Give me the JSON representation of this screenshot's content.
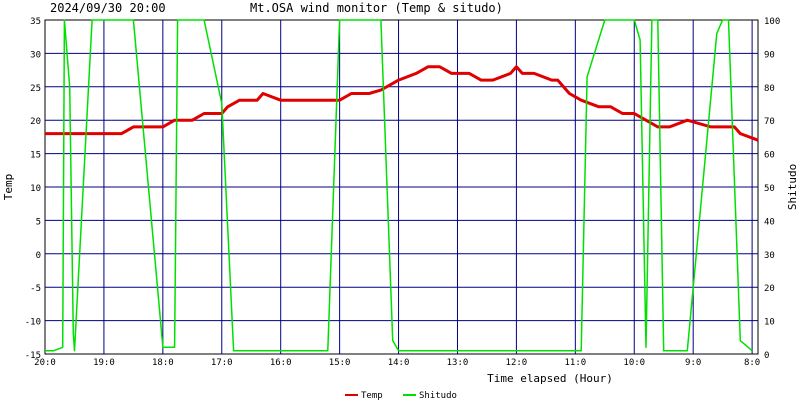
{
  "header": {
    "timestamp": "2024/09/30 20:00",
    "title": "Mt.OSA wind monitor (Temp & situdo)"
  },
  "chart_data": {
    "type": "line",
    "xlabel": "Time elapsed (Hour)",
    "ylabel_left": "Temp",
    "ylabel_right": "Shitudo",
    "x_ticks": [
      "20:0",
      "19:0",
      "18:0",
      "17:0",
      "16:0",
      "15:0",
      "14:0",
      "13:0",
      "12:0",
      "11:0",
      "10:0",
      "9:0",
      "8:0"
    ],
    "left_ticks": [
      "35",
      "30",
      "25",
      "20",
      "15",
      "10",
      "5",
      "0",
      "-5",
      "-10",
      "-15"
    ],
    "right_ticks": [
      "100",
      "90",
      "80",
      "70",
      "60",
      "50",
      "40",
      "30",
      "20",
      "10",
      "0"
    ],
    "ylim_left": [
      -15,
      35
    ],
    "ylim_right": [
      0,
      100
    ],
    "xlim_hours_elapsed": [
      0,
      12.1
    ],
    "grid": true,
    "legend_position": "bottom",
    "series": [
      {
        "name": "Temp",
        "axis": "left",
        "color": "#e00000",
        "x": [
          0,
          0.5,
          1.0,
          1.3,
          1.5,
          2.0,
          2.2,
          2.5,
          2.7,
          3.0,
          3.1,
          3.3,
          3.6,
          3.7,
          4.0,
          5.0,
          5.2,
          5.5,
          5.7,
          6.0,
          6.3,
          6.5,
          6.7,
          6.9,
          7.2,
          7.4,
          7.6,
          7.9,
          8.0,
          8.1,
          8.3,
          8.6,
          8.7,
          8.9,
          9.1,
          9.4,
          9.6,
          9.8,
          10.0,
          10.2,
          10.4,
          10.6,
          10.9,
          11.3,
          11.5,
          11.7,
          11.8,
          12.1
        ],
        "y": [
          18,
          18,
          18,
          18,
          19,
          19,
          20,
          20,
          21,
          21,
          22,
          23,
          23,
          24,
          23,
          23,
          24,
          24,
          24.5,
          26,
          27,
          28,
          28,
          27,
          27,
          26,
          26,
          27,
          28,
          27,
          27,
          26,
          26,
          24,
          23,
          22,
          22,
          21,
          21,
          20,
          19,
          19,
          20,
          19,
          19,
          19,
          18,
          17
        ]
      },
      {
        "name": "Shitudo",
        "axis": "right",
        "color": "#00e000",
        "x": [
          0,
          0.15,
          0.3,
          0.33,
          0.42,
          0.48,
          0.5,
          0.8,
          1.5,
          2.0,
          2.2,
          2.25,
          2.7,
          3.0,
          3.2,
          4.8,
          5.0,
          5.7,
          5.9,
          6.0,
          9.1,
          9.2,
          9.5,
          10.0,
          10.1,
          10.2,
          10.3,
          10.4,
          10.5,
          10.9,
          11.4,
          11.5,
          11.6,
          11.8,
          12.0
        ],
        "y": [
          1,
          1,
          2,
          100,
          80,
          6,
          1,
          100,
          100,
          2,
          2,
          100,
          100,
          75,
          1,
          1,
          100,
          100,
          4,
          1,
          1,
          83,
          100,
          100,
          94,
          2,
          100,
          100,
          1,
          1,
          96,
          100,
          100,
          4,
          1
        ]
      }
    ]
  }
}
